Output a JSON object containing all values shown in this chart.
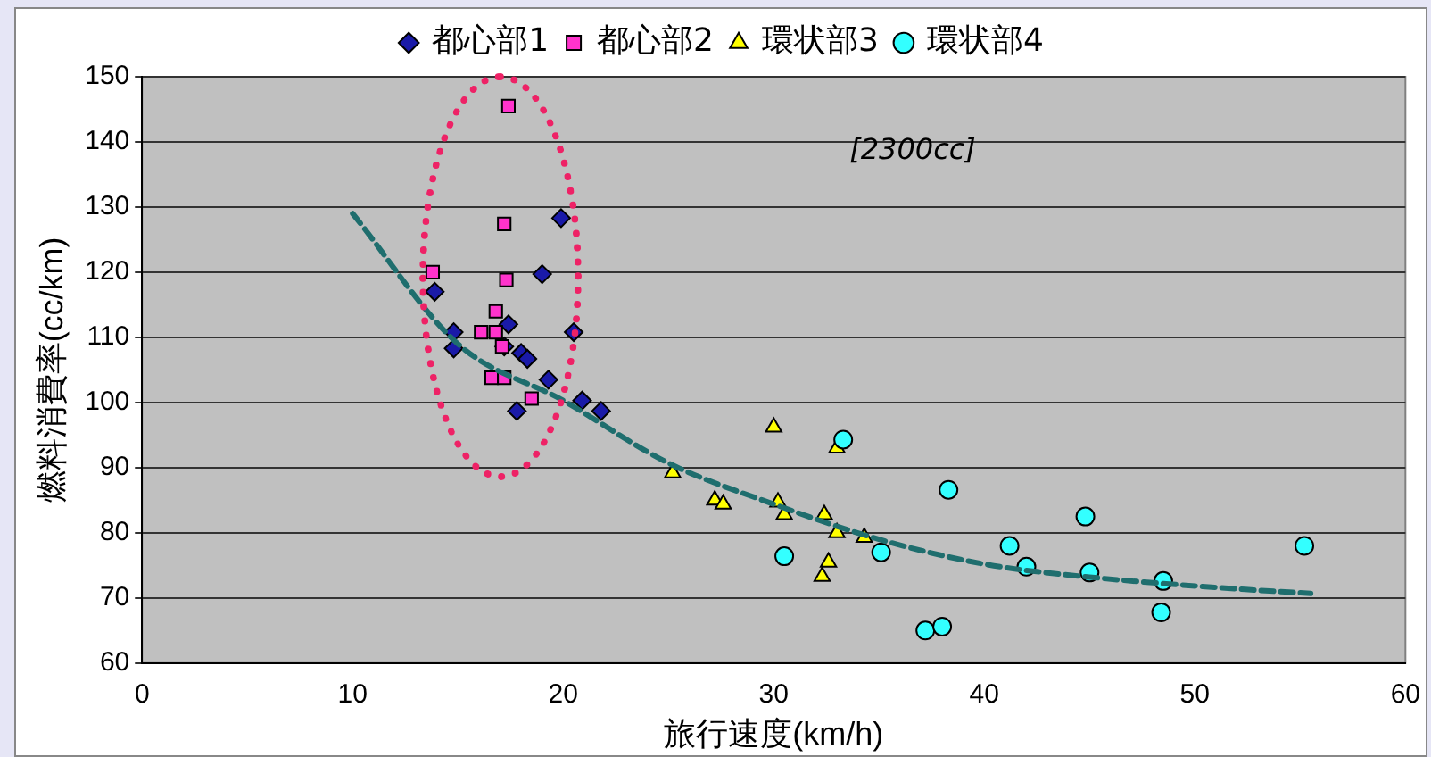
{
  "chart_data": {
    "type": "scatter",
    "xlabel": "旅行速度(km/h)",
    "ylabel": "燃料消費率(cc/km)",
    "xlim": [
      0,
      60
    ],
    "xticks": [
      0,
      10,
      20,
      30,
      40,
      50,
      60
    ],
    "ylim": [
      60,
      150
    ],
    "yticks": [
      60,
      70,
      80,
      90,
      100,
      110,
      120,
      130,
      140,
      150
    ],
    "grid": "y",
    "legend": "top",
    "annotations": [
      "[2300cc]"
    ],
    "series": [
      {
        "name": "都心部1",
        "color": "#1a1aa8",
        "marker": "diamond",
        "x": [
          13.9,
          14.8,
          14.8,
          17.4,
          17.2,
          18.0,
          18.3,
          19.0,
          19.9,
          20.5,
          19.3,
          17.8,
          20.9,
          21.8
        ],
        "values": [
          117,
          110.8,
          108.3,
          112,
          108.6,
          107.6,
          106.7,
          119.7,
          128.3,
          110.8,
          103.5,
          98.7,
          100.3,
          98.7
        ]
      },
      {
        "name": "都心部2",
        "color": "#ff33cc",
        "marker": "square",
        "x": [
          17.4,
          17.2,
          17.3,
          13.8,
          16.8,
          16.1,
          16.8,
          17.1,
          16.6,
          17.2,
          18.5
        ],
        "values": [
          145.5,
          127.4,
          118.8,
          120,
          114,
          110.8,
          110.8,
          108.6,
          103.8,
          103.8,
          100.6
        ]
      },
      {
        "name": "環状部3",
        "color": "#ffff00",
        "marker": "triangle",
        "x": [
          30.0,
          25.2,
          27.2,
          27.6,
          30.2,
          30.5,
          33.0,
          32.4,
          33.0,
          34.3,
          32.6,
          32.3
        ],
        "values": [
          96.2,
          89.2,
          85,
          84.4,
          84.7,
          82.8,
          93,
          82.8,
          80,
          79.3,
          75.5,
          73.3
        ]
      },
      {
        "name": "環状部4",
        "color": "#33ffff",
        "marker": "circle",
        "x": [
          33.3,
          30.5,
          35.1,
          38.3,
          37.2,
          38.0,
          41.2,
          42.0,
          44.8,
          45.0,
          48.5,
          48.4,
          55.2
        ],
        "values": [
          94.3,
          76.4,
          77,
          86.6,
          65,
          65.6,
          78,
          74.8,
          82.5,
          73.9,
          72.6,
          67.8,
          78
        ]
      },
      {
        "type": "line",
        "color": "#1f6e6e",
        "line_style": "dashed",
        "marker": "none",
        "x": [
          10,
          15,
          20,
          25,
          30,
          35,
          40,
          45,
          52.4,
          55.5
        ],
        "values": [
          129,
          109,
          100.3,
          90.7,
          84.4,
          79,
          75.2,
          73.2,
          71.3,
          70.7
        ]
      }
    ]
  }
}
